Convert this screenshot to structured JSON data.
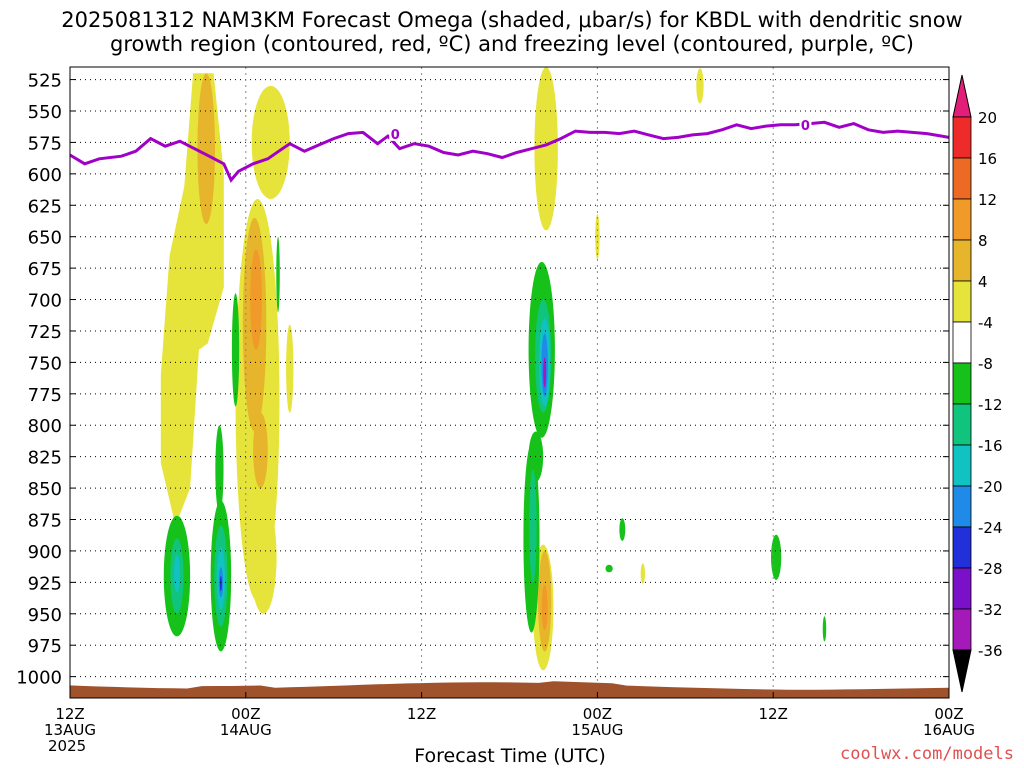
{
  "title_line1": "2025081312 NAM3KM Forecast Omega (shaded, μbar/s) for KBDL with dendritic snow",
  "title_line2": "growth region (contoured, red, ºC) and freezing level (contoured, purple, ºC)",
  "credit": "coolwx.com/models",
  "chart_data": {
    "type": "heatmap",
    "title": "2025081312 NAM3KM Forecast Omega (shaded, μbar/s) for KBDL with dendritic snow growth region (contoured, red, ºC) and freezing level (contoured, purple, ºC)",
    "xlabel": "Forecast Time (UTC)",
    "ylabel": "",
    "x_range_hours": [
      0,
      60
    ],
    "x_ticks": [
      {
        "hour": 0,
        "lines": [
          "12Z",
          "13AUG",
          "2025"
        ]
      },
      {
        "hour": 12,
        "lines": [
          "00Z",
          "14AUG"
        ]
      },
      {
        "hour": 24,
        "lines": [
          "12Z"
        ]
      },
      {
        "hour": 36,
        "lines": [
          "00Z",
          "15AUG"
        ]
      },
      {
        "hour": 48,
        "lines": [
          "12Z"
        ]
      },
      {
        "hour": 60,
        "lines": [
          "00Z",
          "16AUG"
        ]
      }
    ],
    "y_ticks_hpa": [
      525,
      550,
      575,
      600,
      625,
      650,
      675,
      700,
      725,
      750,
      775,
      800,
      825,
      850,
      875,
      900,
      925,
      950,
      975,
      1000
    ],
    "y_range_hpa": [
      515,
      1017
    ],
    "grid": true,
    "colorbar": {
      "labels": [
        "20",
        "16",
        "12",
        "8",
        "4",
        "-4",
        "-8",
        "-12",
        "-16",
        "-20",
        "-24",
        "-28",
        "-32",
        "-36"
      ],
      "colors": [
        "#e21e78",
        "#ee2b2b",
        "#ec6a24",
        "#f09a2a",
        "#e6b52b",
        "#e6e33a",
        "#ffffff",
        "#16c21a",
        "#10c47e",
        "#11c2c2",
        "#1f8ae8",
        "#2130d8",
        "#7a10c8",
        "#a41ab8",
        "#9c9c9c",
        "#000000"
      ]
    },
    "freezing_level_label": "0",
    "freezing_level_hpa": [
      [
        0.0,
        585
      ],
      [
        1.0,
        592
      ],
      [
        2.0,
        588
      ],
      [
        3.5,
        586
      ],
      [
        4.5,
        582
      ],
      [
        5.5,
        572
      ],
      [
        6.5,
        578
      ],
      [
        7.5,
        574
      ],
      [
        8.5,
        580
      ],
      [
        9.5,
        586
      ],
      [
        10.5,
        592
      ],
      [
        11.0,
        605
      ],
      [
        11.5,
        598
      ],
      [
        12.5,
        592
      ],
      [
        13.5,
        588
      ],
      [
        14.5,
        580
      ],
      [
        15.0,
        576
      ],
      [
        16.0,
        582
      ],
      [
        17.0,
        577
      ],
      [
        18.0,
        572
      ],
      [
        19.0,
        568
      ],
      [
        20.0,
        567
      ],
      [
        21.0,
        576
      ],
      [
        21.7,
        570
      ],
      [
        22.5,
        580
      ],
      [
        23.5,
        576
      ],
      [
        24.5,
        578
      ],
      [
        25.5,
        583
      ],
      [
        26.5,
        585
      ],
      [
        27.5,
        582
      ],
      [
        28.5,
        584
      ],
      [
        29.5,
        587
      ],
      [
        30.5,
        583
      ],
      [
        31.5,
        580
      ],
      [
        32.5,
        577
      ],
      [
        33.5,
        572
      ],
      [
        34.5,
        566
      ],
      [
        35.5,
        567
      ],
      [
        36.5,
        567
      ],
      [
        37.5,
        568
      ],
      [
        38.5,
        566
      ],
      [
        39.5,
        569
      ],
      [
        40.5,
        572
      ],
      [
        41.5,
        571
      ],
      [
        42.5,
        569
      ],
      [
        43.5,
        568
      ],
      [
        44.5,
        565
      ],
      [
        45.5,
        561
      ],
      [
        46.5,
        564
      ],
      [
        47.5,
        562
      ],
      [
        48.5,
        561
      ],
      [
        49.5,
        561
      ],
      [
        50.5,
        560
      ],
      [
        51.5,
        559
      ],
      [
        52.5,
        563
      ],
      [
        53.5,
        560
      ],
      [
        54.5,
        565
      ],
      [
        55.5,
        567
      ],
      [
        56.5,
        566
      ],
      [
        57.5,
        567
      ],
      [
        58.5,
        568
      ],
      [
        59.5,
        570
      ],
      [
        60.0,
        571
      ]
    ],
    "freezing_label_positions": [
      [
        22.2,
        569
      ],
      [
        50.2,
        562
      ]
    ],
    "shaded_regions": [
      {
        "level": "4",
        "shape": "poly",
        "points": [
          [
            6.2,
            760
          ],
          [
            6.8,
            665
          ],
          [
            7.8,
            610
          ],
          [
            8.4,
            520
          ],
          [
            9.8,
            520
          ],
          [
            10.5,
            600
          ],
          [
            10.5,
            690
          ],
          [
            9.4,
            735
          ],
          [
            8.8,
            740
          ],
          [
            8.2,
            850
          ],
          [
            7.2,
            880
          ],
          [
            6.2,
            830
          ]
        ]
      },
      {
        "level": "4",
        "shape": "ellipse",
        "cx": 13.7,
        "cy": 575,
        "rx": 1.3,
        "ry": 45
      },
      {
        "level": "4",
        "shape": "ellipse",
        "cx": 12.8,
        "cy": 780,
        "rx": 1.5,
        "ry": 160
      },
      {
        "level": "4",
        "shape": "ellipse",
        "cx": 13.2,
        "cy": 905,
        "rx": 0.9,
        "ry": 45
      },
      {
        "level": "4",
        "shape": "ellipse",
        "cx": 15.0,
        "cy": 755,
        "rx": 0.25,
        "ry": 35
      },
      {
        "level": "4",
        "shape": "ellipse",
        "cx": 32.5,
        "cy": 580,
        "rx": 0.8,
        "ry": 65
      },
      {
        "level": "4",
        "shape": "ellipse",
        "cx": 32.3,
        "cy": 945,
        "rx": 0.7,
        "ry": 50
      },
      {
        "level": "4",
        "shape": "ellipse",
        "cx": 36.0,
        "cy": 650,
        "rx": 0.15,
        "ry": 18
      },
      {
        "level": "4",
        "shape": "ellipse",
        "cx": 43.0,
        "cy": 530,
        "rx": 0.25,
        "ry": 14
      },
      {
        "level": "4",
        "shape": "ellipse",
        "cx": 39.1,
        "cy": 918,
        "rx": 0.15,
        "ry": 8
      },
      {
        "level": "8",
        "shape": "ellipse",
        "cx": 9.3,
        "cy": 580,
        "rx": 0.6,
        "ry": 60
      },
      {
        "level": "8",
        "shape": "ellipse",
        "cx": 12.6,
        "cy": 720,
        "rx": 0.8,
        "ry": 85
      },
      {
        "level": "8",
        "shape": "ellipse",
        "cx": 13.0,
        "cy": 820,
        "rx": 0.5,
        "ry": 30
      },
      {
        "level": "8",
        "shape": "ellipse",
        "cx": 32.4,
        "cy": 940,
        "rx": 0.45,
        "ry": 40
      },
      {
        "level": "12",
        "shape": "ellipse",
        "cx": 12.7,
        "cy": 700,
        "rx": 0.4,
        "ry": 40
      },
      {
        "level": "12",
        "shape": "ellipse",
        "cx": 32.4,
        "cy": 945,
        "rx": 0.2,
        "ry": 18
      },
      {
        "level": "-4",
        "shape": "ellipse",
        "cx": 7.3,
        "cy": 920,
        "rx": 0.9,
        "ry": 48
      },
      {
        "level": "-4",
        "shape": "ellipse",
        "cx": 10.3,
        "cy": 920,
        "rx": 0.7,
        "ry": 60
      },
      {
        "level": "-4",
        "shape": "ellipse",
        "cx": 10.2,
        "cy": 835,
        "rx": 0.28,
        "ry": 35
      },
      {
        "level": "-4",
        "shape": "ellipse",
        "cx": 11.3,
        "cy": 740,
        "rx": 0.25,
        "ry": 45
      },
      {
        "level": "-4",
        "shape": "ellipse",
        "cx": 14.2,
        "cy": 680,
        "rx": 0.12,
        "ry": 30
      },
      {
        "level": "-4",
        "shape": "ellipse",
        "cx": 32.2,
        "cy": 740,
        "rx": 0.9,
        "ry": 70
      },
      {
        "level": "-4",
        "shape": "ellipse",
        "cx": 31.5,
        "cy": 890,
        "rx": 0.55,
        "ry": 75
      },
      {
        "level": "-4",
        "shape": "ellipse",
        "cx": 31.8,
        "cy": 825,
        "rx": 0.5,
        "ry": 20
      },
      {
        "level": "-4",
        "shape": "ellipse",
        "cx": 37.7,
        "cy": 883,
        "rx": 0.2,
        "ry": 9
      },
      {
        "level": "-4",
        "shape": "ellipse",
        "cx": 36.8,
        "cy": 914,
        "rx": 0.25,
        "ry": 3
      },
      {
        "level": "-4",
        "shape": "ellipse",
        "cx": 48.2,
        "cy": 905,
        "rx": 0.35,
        "ry": 18
      },
      {
        "level": "-4",
        "shape": "ellipse",
        "cx": 51.5,
        "cy": 962,
        "rx": 0.12,
        "ry": 10
      },
      {
        "level": "-8",
        "shape": "ellipse",
        "cx": 7.3,
        "cy": 920,
        "rx": 0.45,
        "ry": 30
      },
      {
        "level": "-8",
        "shape": "ellipse",
        "cx": 10.3,
        "cy": 920,
        "rx": 0.45,
        "ry": 40
      },
      {
        "level": "-8",
        "shape": "ellipse",
        "cx": 32.3,
        "cy": 745,
        "rx": 0.55,
        "ry": 45
      },
      {
        "level": "-8",
        "shape": "ellipse",
        "cx": 31.6,
        "cy": 880,
        "rx": 0.25,
        "ry": 45
      },
      {
        "level": "-12",
        "shape": "ellipse",
        "cx": 7.3,
        "cy": 918,
        "rx": 0.2,
        "ry": 15
      },
      {
        "level": "-12",
        "shape": "ellipse",
        "cx": 10.3,
        "cy": 922,
        "rx": 0.28,
        "ry": 25
      },
      {
        "level": "-12",
        "shape": "ellipse",
        "cx": 32.4,
        "cy": 750,
        "rx": 0.38,
        "ry": 35
      },
      {
        "level": "-16",
        "shape": "ellipse",
        "cx": 10.3,
        "cy": 925,
        "rx": 0.15,
        "ry": 12
      },
      {
        "level": "-16",
        "shape": "ellipse",
        "cx": 32.4,
        "cy": 752,
        "rx": 0.22,
        "ry": 25
      },
      {
        "level": "-20",
        "shape": "ellipse",
        "cx": 10.3,
        "cy": 926,
        "rx": 0.07,
        "ry": 6
      },
      {
        "level": "-28",
        "shape": "ellipse",
        "cx": 32.4,
        "cy": 758,
        "rx": 0.1,
        "ry": 12
      }
    ],
    "terrain_color": "#a0522d",
    "freezing_level_color": "#a000c8"
  }
}
